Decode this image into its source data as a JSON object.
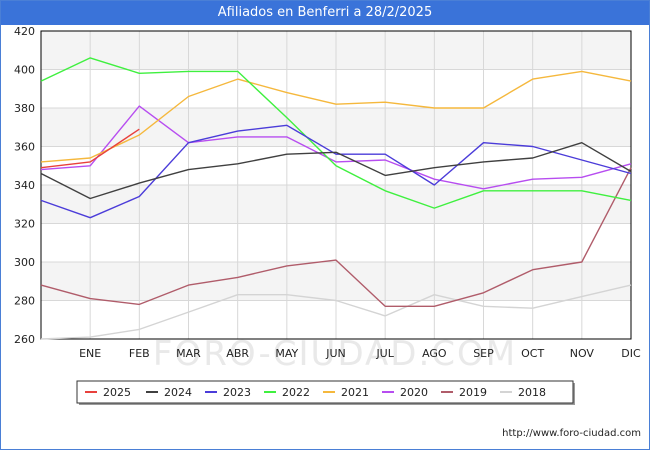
{
  "header": {
    "title": "Afiliados en Benferri a 28/2/2025"
  },
  "credit": "http://www.foro-ciudad.com",
  "watermark": "FORO-CIUDAD.COM",
  "chart_data": {
    "type": "line",
    "title": "Afiliados en Benferri a 28/2/2025",
    "xlabel": "",
    "ylabel": "",
    "categories": [
      "",
      "ENE",
      "FEB",
      "MAR",
      "ABR",
      "MAY",
      "JUN",
      "JUL",
      "AGO",
      "SEP",
      "OCT",
      "NOV",
      "DIC"
    ],
    "yticks": [
      260,
      280,
      300,
      320,
      340,
      360,
      380,
      400,
      420
    ],
    "ylim": [
      260,
      420
    ],
    "grid": true,
    "legend_position": "bottom",
    "series": [
      {
        "name": "2025",
        "color": "#e8413c",
        "values": [
          349,
          352,
          369,
          null,
          null,
          null,
          null,
          null,
          null,
          null,
          null,
          null,
          null
        ]
      },
      {
        "name": "2024",
        "color": "#404040",
        "values": [
          346,
          333,
          341,
          348,
          351,
          356,
          357,
          345,
          349,
          352,
          354,
          362,
          347
        ]
      },
      {
        "name": "2023",
        "color": "#4b3cd9",
        "values": [
          332,
          323,
          334,
          362,
          368,
          371,
          356,
          356,
          340,
          362,
          360,
          353,
          346
        ]
      },
      {
        "name": "2022",
        "color": "#3ff03f",
        "values": [
          394,
          406,
          398,
          399,
          399,
          375,
          350,
          337,
          328,
          337,
          337,
          337,
          332
        ]
      },
      {
        "name": "2021",
        "color": "#f5b83d",
        "values": [
          352,
          354,
          366,
          386,
          395,
          388,
          382,
          383,
          380,
          380,
          395,
          399,
          394
        ]
      },
      {
        "name": "2020",
        "color": "#b74df0",
        "values": [
          348,
          350,
          381,
          362,
          365,
          365,
          352,
          353,
          343,
          338,
          343,
          344,
          351
        ]
      },
      {
        "name": "2019",
        "color": "#b05c6a",
        "values": [
          288,
          281,
          278,
          288,
          292,
          298,
          301,
          277,
          277,
          284,
          296,
          300,
          349
        ]
      },
      {
        "name": "2018",
        "color": "#d4d4d4",
        "values": [
          260,
          261,
          265,
          274,
          283,
          283,
          280,
          272,
          283,
          277,
          276,
          282,
          288
        ]
      }
    ]
  }
}
